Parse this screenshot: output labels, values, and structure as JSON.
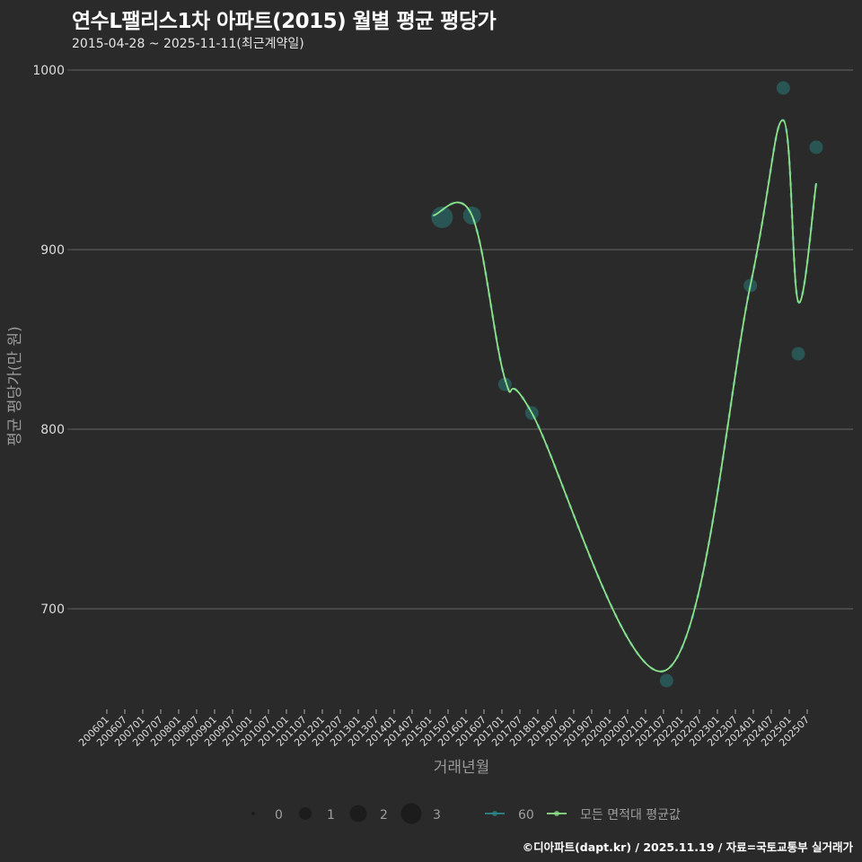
{
  "header": {
    "title": "연수L팰리스1차 아파트(2015) 월별 평균 평당가",
    "subtitle": "2015-04-28 ~ 2025-11-11(최근계약일)"
  },
  "footer": {
    "credit": "©디아파트(dapt.kr) / 2025.11.19 / 자료=국토교통부 실거래가"
  },
  "colors": {
    "background": "#2a2a2a",
    "grid": "#5c5c5c",
    "series_60": "#2a8a8a",
    "series_avg": "#8fe38a"
  },
  "chart_data": {
    "type": "scatter+line",
    "title": "연수L팰리스1차 아파트(2015) 월별 평균 평당가",
    "subtitle": "2015-04-28 ~ 2025-11-11(최근계약일)",
    "xlabel": "거래년월",
    "ylabel": "평균 평당가(만 원)",
    "ylim": [
      645,
      1000
    ],
    "yticks": [
      700,
      800,
      900,
      1000
    ],
    "grid": true,
    "x_tick_labels": [
      "200601",
      "200607",
      "200701",
      "200707",
      "200801",
      "200807",
      "200901",
      "200907",
      "201001",
      "201007",
      "201101",
      "201107",
      "201201",
      "201207",
      "201301",
      "201307",
      "201401",
      "201407",
      "201501",
      "201507",
      "201601",
      "201607",
      "201701",
      "201707",
      "201801",
      "201807",
      "201901",
      "201907",
      "202001",
      "202007",
      "202101",
      "202107",
      "202201",
      "202207",
      "202301",
      "202307",
      "202401",
      "202407",
      "202501",
      "202507"
    ],
    "series": [
      {
        "name": "60",
        "kind": "scatter",
        "points": [
          {
            "x": "2015-05",
            "y": 918,
            "count": 3
          },
          {
            "x": "2016-03",
            "y": 919,
            "count": 2
          },
          {
            "x": "2017-02",
            "y": 825,
            "count": 1
          },
          {
            "x": "2017-11",
            "y": 809,
            "count": 1
          },
          {
            "x": "2021-08",
            "y": 660,
            "count": 1
          },
          {
            "x": "2023-12",
            "y": 880,
            "count": 1
          },
          {
            "x": "2024-11",
            "y": 990,
            "count": 1
          },
          {
            "x": "2025-04",
            "y": 842,
            "count": 1
          },
          {
            "x": "2025-10",
            "y": 957,
            "count": 1
          }
        ]
      },
      {
        "name": "모든 면적대 평균값",
        "kind": "smoothed-line",
        "points": [
          {
            "x": "2015-02",
            "y": 919
          },
          {
            "x": "2016-03",
            "y": 919
          },
          {
            "x": "2017-02",
            "y": 828
          },
          {
            "x": "2017-11",
            "y": 809
          },
          {
            "x": "2021-08",
            "y": 666
          },
          {
            "x": "2023-12",
            "y": 880
          },
          {
            "x": "2024-11",
            "y": 972
          },
          {
            "x": "2025-04",
            "y": 871
          },
          {
            "x": "2025-10",
            "y": 937
          }
        ]
      }
    ],
    "legend": {
      "size_items": [
        {
          "label": "0",
          "r": 2
        },
        {
          "label": "1",
          "r": 7
        },
        {
          "label": "2",
          "r": 9.5
        },
        {
          "label": "3",
          "r": 11.5
        }
      ],
      "color_items": [
        {
          "label": "60",
          "color": "#2a8a8a"
        },
        {
          "label": "모든 면적대 평균값",
          "color": "#8fe38a"
        }
      ],
      "position": "bottom"
    }
  }
}
